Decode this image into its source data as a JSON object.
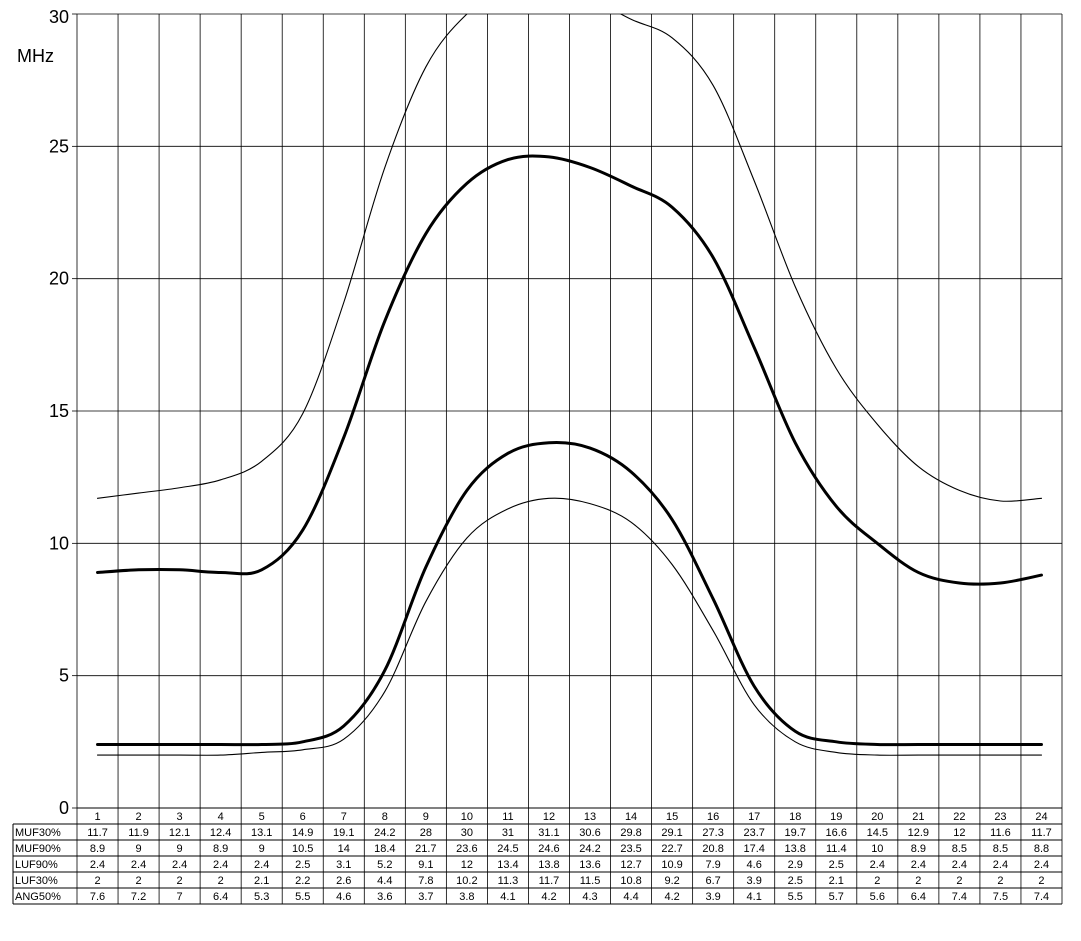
{
  "chart_data": {
    "type": "line",
    "ylabel": "MHz",
    "ylim": [
      0,
      30
    ],
    "yticks": [
      "0",
      "5",
      "10",
      "15",
      "20",
      "25",
      "30"
    ],
    "x": [
      1,
      2,
      3,
      4,
      5,
      6,
      7,
      8,
      9,
      10,
      11,
      12,
      13,
      14,
      15,
      16,
      17,
      18,
      19,
      20,
      21,
      22,
      23,
      24
    ],
    "x_labels": [
      "1",
      "2",
      "3",
      "4",
      "5",
      "6",
      "7",
      "8",
      "9",
      "10",
      "11",
      "12",
      "13",
      "14",
      "15",
      "16",
      "17",
      "18",
      "19",
      "20",
      "21",
      "22",
      "23",
      "24"
    ],
    "grid": true,
    "series": [
      {
        "name": "MUF30%",
        "weight": "thin",
        "values": [
          11.7,
          11.9,
          12.1,
          12.4,
          13.1,
          14.9,
          19.1,
          24.2,
          28,
          30,
          31,
          31.1,
          30.6,
          29.8,
          29.1,
          27.3,
          23.7,
          19.7,
          16.6,
          14.5,
          12.9,
          12,
          11.6,
          11.7
        ]
      },
      {
        "name": "MUF90%",
        "weight": "bold",
        "values": [
          8.9,
          9,
          9,
          8.9,
          9,
          10.5,
          14,
          18.4,
          21.7,
          23.6,
          24.5,
          24.6,
          24.2,
          23.5,
          22.7,
          20.8,
          17.4,
          13.8,
          11.4,
          10,
          8.9,
          8.5,
          8.5,
          8.8
        ]
      },
      {
        "name": "LUF90%",
        "weight": "bold",
        "values": [
          2.4,
          2.4,
          2.4,
          2.4,
          2.4,
          2.5,
          3.1,
          5.2,
          9.1,
          12,
          13.4,
          13.8,
          13.6,
          12.7,
          10.9,
          7.9,
          4.6,
          2.9,
          2.5,
          2.4,
          2.4,
          2.4,
          2.4,
          2.4
        ]
      },
      {
        "name": "LUF30%",
        "weight": "thin",
        "values": [
          2,
          2,
          2,
          2,
          2.1,
          2.2,
          2.6,
          4.4,
          7.8,
          10.2,
          11.3,
          11.7,
          11.5,
          10.8,
          9.2,
          6.7,
          3.9,
          2.5,
          2.1,
          2,
          2,
          2,
          2,
          2
        ]
      }
    ],
    "table": {
      "rows": [
        {
          "label": "MUF30%",
          "values": [
            "11.7",
            "11.9",
            "12.1",
            "12.4",
            "13.1",
            "14.9",
            "19.1",
            "24.2",
            "28",
            "30",
            "31",
            "31.1",
            "30.6",
            "29.8",
            "29.1",
            "27.3",
            "23.7",
            "19.7",
            "16.6",
            "14.5",
            "12.9",
            "12",
            "11.6",
            "11.7"
          ]
        },
        {
          "label": "MUF90%",
          "values": [
            "8.9",
            "9",
            "9",
            "8.9",
            "9",
            "10.5",
            "14",
            "18.4",
            "21.7",
            "23.6",
            "24.5",
            "24.6",
            "24.2",
            "23.5",
            "22.7",
            "20.8",
            "17.4",
            "13.8",
            "11.4",
            "10",
            "8.9",
            "8.5",
            "8.5",
            "8.8"
          ]
        },
        {
          "label": "LUF90%",
          "values": [
            "2.4",
            "2.4",
            "2.4",
            "2.4",
            "2.4",
            "2.5",
            "3.1",
            "5.2",
            "9.1",
            "12",
            "13.4",
            "13.8",
            "13.6",
            "12.7",
            "10.9",
            "7.9",
            "4.6",
            "2.9",
            "2.5",
            "2.4",
            "2.4",
            "2.4",
            "2.4",
            "2.4"
          ]
        },
        {
          "label": "LUF30%",
          "values": [
            "2",
            "2",
            "2",
            "2",
            "2.1",
            "2.2",
            "2.6",
            "4.4",
            "7.8",
            "10.2",
            "11.3",
            "11.7",
            "11.5",
            "10.8",
            "9.2",
            "6.7",
            "3.9",
            "2.5",
            "2.1",
            "2",
            "2",
            "2",
            "2",
            "2"
          ]
        },
        {
          "label": "ANG50%",
          "values": [
            "7.6",
            "7.2",
            "7",
            "6.4",
            "5.3",
            "5.5",
            "4.6",
            "3.6",
            "3.7",
            "3.8",
            "4.1",
            "4.2",
            "4.3",
            "4.4",
            "4.2",
            "3.9",
            "4.1",
            "5.5",
            "5.7",
            "5.6",
            "6.4",
            "7.4",
            "7.5",
            "7.4"
          ]
        }
      ]
    },
    "colors": {
      "line": "#000000",
      "grid": "#000000",
      "background": "#ffffff"
    }
  }
}
